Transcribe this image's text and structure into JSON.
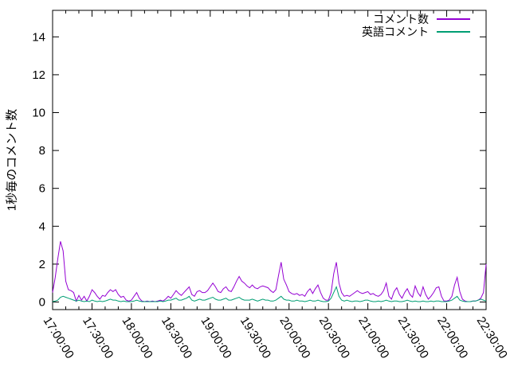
{
  "chart_data": {
    "type": "line",
    "title": "",
    "xlabel": "",
    "ylabel": "1秒毎のコメント数",
    "x_major_ticks": [
      "17:00:00",
      "17:30:00",
      "18:00:00",
      "18:30:00",
      "19:00:00",
      "19:30:00",
      "20:00:00",
      "20:30:00",
      "21:00:00",
      "21:30:00",
      "22:00:00",
      "22:30:00"
    ],
    "x_major_interval_minutes": 30,
    "x_minor_interval_minutes": 10,
    "x_total_minutes": 330,
    "sample_interval_minutes": 2,
    "y_ticks": [
      0,
      2,
      4,
      6,
      8,
      10,
      12,
      14
    ],
    "ylim": [
      -0.4,
      15.4
    ],
    "grid": false,
    "legend_position": "top-right-inside",
    "axis_color": "#000000",
    "background_color": "#ffffff",
    "series": [
      {
        "name": "コメント数",
        "color": "#9400d3",
        "values": [
          0.5,
          1.3,
          2.3,
          3.2,
          2.7,
          1.1,
          0.65,
          0.6,
          0.5,
          0.05,
          0.35,
          0.1,
          0.3,
          0.05,
          0.3,
          0.65,
          0.5,
          0.3,
          0.15,
          0.35,
          0.3,
          0.5,
          0.65,
          0.55,
          0.65,
          0.4,
          0.25,
          0.3,
          0.1,
          0.05,
          0.1,
          0.3,
          0.5,
          0.2,
          0.05,
          0.02,
          0.05,
          0.02,
          0.05,
          0.02,
          0.05,
          0.1,
          0.05,
          0.15,
          0.3,
          0.2,
          0.4,
          0.6,
          0.45,
          0.35,
          0.5,
          0.65,
          0.8,
          0.4,
          0.3,
          0.55,
          0.6,
          0.5,
          0.5,
          0.6,
          0.8,
          1.0,
          0.8,
          0.55,
          0.5,
          0.7,
          0.8,
          0.6,
          0.55,
          0.8,
          1.1,
          1.35,
          1.1,
          1.0,
          0.85,
          0.75,
          0.9,
          0.75,
          0.7,
          0.8,
          0.85,
          0.8,
          0.75,
          0.6,
          0.5,
          0.65,
          1.4,
          2.1,
          1.2,
          0.9,
          0.55,
          0.45,
          0.4,
          0.45,
          0.35,
          0.4,
          0.3,
          0.55,
          0.7,
          0.45,
          0.7,
          0.9,
          0.5,
          0.2,
          0.1,
          0.1,
          0.5,
          1.5,
          2.1,
          1.0,
          0.5,
          0.3,
          0.35,
          0.3,
          0.4,
          0.5,
          0.6,
          0.5,
          0.45,
          0.5,
          0.55,
          0.4,
          0.45,
          0.35,
          0.3,
          0.4,
          0.6,
          1.0,
          0.3,
          0.15,
          0.55,
          0.75,
          0.4,
          0.2,
          0.5,
          0.7,
          0.4,
          0.25,
          0.85,
          0.5,
          0.3,
          0.8,
          0.4,
          0.15,
          0.3,
          0.5,
          0.75,
          0.8,
          0.3,
          0.05,
          0.05,
          0.1,
          0.3,
          0.9,
          1.3,
          0.55,
          0.15,
          0.05,
          0.02,
          0.02,
          0.05,
          0.05,
          0.1,
          0.2,
          0.5,
          2.0
        ]
      },
      {
        "name": "英語コメント",
        "color": "#009e73",
        "values": [
          0.02,
          0.05,
          0.1,
          0.25,
          0.3,
          0.25,
          0.2,
          0.15,
          0.1,
          0.05,
          0.1,
          0.05,
          0.02,
          0.05,
          0.02,
          0.1,
          0.05,
          0.02,
          0.05,
          0.02,
          0.05,
          0.1,
          0.15,
          0.1,
          0.1,
          0.05,
          0.02,
          0.05,
          0.02,
          0.02,
          0.02,
          0.05,
          0.1,
          0.05,
          0.02,
          0.02,
          0.02,
          0.02,
          0.02,
          0.02,
          0.02,
          0.05,
          0.02,
          0.05,
          0.1,
          0.1,
          0.15,
          0.2,
          0.1,
          0.1,
          0.15,
          0.2,
          0.3,
          0.1,
          0.05,
          0.1,
          0.15,
          0.1,
          0.1,
          0.15,
          0.2,
          0.25,
          0.15,
          0.1,
          0.1,
          0.15,
          0.2,
          0.1,
          0.1,
          0.15,
          0.2,
          0.25,
          0.15,
          0.1,
          0.1,
          0.1,
          0.15,
          0.1,
          0.05,
          0.1,
          0.15,
          0.1,
          0.1,
          0.05,
          0.05,
          0.1,
          0.2,
          0.3,
          0.15,
          0.1,
          0.1,
          0.05,
          0.05,
          0.1,
          0.05,
          0.05,
          0.02,
          0.05,
          0.1,
          0.05,
          0.05,
          0.1,
          0.05,
          0.02,
          0.02,
          0.05,
          0.2,
          0.5,
          0.8,
          0.3,
          0.1,
          0.05,
          0.1,
          0.05,
          0.02,
          0.05,
          0.05,
          0.02,
          0.05,
          0.1,
          0.1,
          0.05,
          0.02,
          0.02,
          0.05,
          0.02,
          0.05,
          0.1,
          0.05,
          0.02,
          0.05,
          0.05,
          0.02,
          0.02,
          0.05,
          0.1,
          0.05,
          0.02,
          0.05,
          0.02,
          0.02,
          0.05,
          0.02,
          0.02,
          0.05,
          0.02,
          0.05,
          0.05,
          0.02,
          0.02,
          0.02,
          0.05,
          0.1,
          0.2,
          0.3,
          0.1,
          0.05,
          0.02,
          0.02,
          0.02,
          0.05,
          0.05,
          0.1,
          0.15,
          0.1,
          0.05
        ]
      }
    ]
  }
}
